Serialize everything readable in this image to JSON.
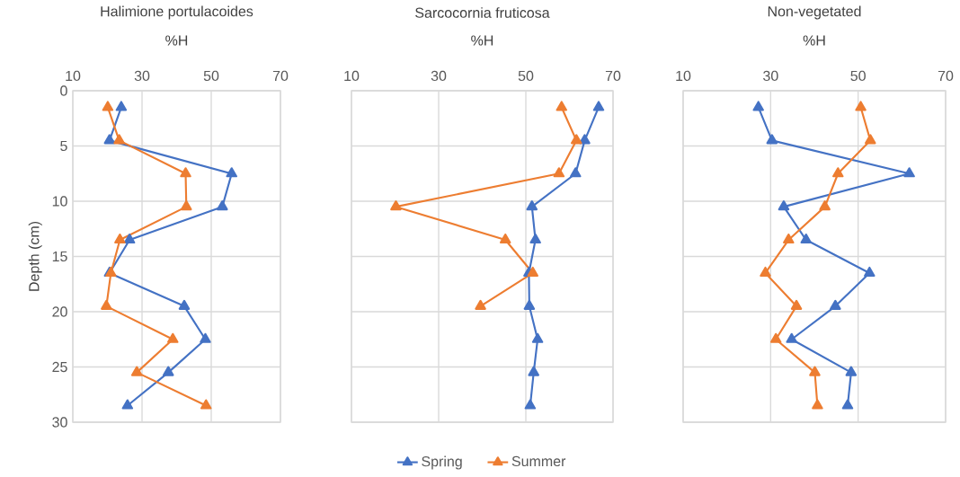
{
  "chart_data": [
    {
      "type": "line",
      "title": "Halimione portulacoides",
      "xlabel": "%H",
      "ylabel": "Depth (cm)",
      "xlim": [
        10,
        70
      ],
      "xticks": [
        10,
        30,
        50,
        70
      ],
      "ylim": [
        30,
        0
      ],
      "yticks": [
        0,
        5,
        10,
        15,
        20,
        25,
        30
      ],
      "grid": true,
      "marker": "triangle",
      "line_style": "solid",
      "series": [
        {
          "color": "#4472c4",
          "x": [
            24.0,
            20.6,
            55.9,
            53.2,
            26.4,
            20.6,
            42.2,
            48.3,
            37.6,
            25.8
          ],
          "values": [
            1.5,
            4.5,
            7.5,
            10.5,
            13.5,
            16.5,
            19.5,
            22.5,
            25.5,
            28.5
          ]
        },
        {
          "color": "#ed7d31",
          "x": [
            20.1,
            23.4,
            42.6,
            42.8,
            23.6,
            21.0,
            19.7,
            38.9,
            28.5,
            48.5
          ],
          "values": [
            1.5,
            4.5,
            7.5,
            10.5,
            13.5,
            16.5,
            19.5,
            22.5,
            25.5,
            28.5
          ]
        }
      ]
    },
    {
      "type": "line",
      "title": "Sarcocornia fruticosa",
      "xlabel": "%H",
      "xlim": [
        10,
        70
      ],
      "xticks": [
        10,
        30,
        50,
        70
      ],
      "ylim": [
        30,
        0
      ],
      "yticks": [
        0,
        5,
        10,
        15,
        20,
        25,
        30
      ],
      "tick_labels": "x",
      "grid": true,
      "marker": "triangle",
      "line_style": "solid",
      "legend": "bottom",
      "series": [
        {
          "name": "Spring",
          "color": "#4472c4",
          "x": [
            66.7,
            63.5,
            61.4,
            51.4,
            52.2,
            50.7,
            50.8,
            52.7,
            51.8,
            51.0
          ],
          "values": [
            1.5,
            4.5,
            7.5,
            10.5,
            13.5,
            16.5,
            19.5,
            22.5,
            25.5,
            28.5
          ]
        },
        {
          "name": "Summer",
          "color": "#ed7d31",
          "x": [
            58.2,
            61.6,
            57.6,
            20.2,
            45.3,
            51.6,
            39.6
          ],
          "values": [
            1.5,
            4.5,
            7.5,
            10.5,
            13.5,
            16.5,
            19.5
          ]
        }
      ]
    },
    {
      "type": "line",
      "title": "Non-vegetated",
      "xlabel": "%H",
      "xlim": [
        10,
        70
      ],
      "xticks": [
        10,
        30,
        50,
        70
      ],
      "ylim": [
        30,
        0
      ],
      "yticks": [
        0,
        5,
        10,
        15,
        20,
        25,
        30
      ],
      "tick_labels": "x",
      "grid": true,
      "marker": "triangle",
      "line_style": "solid",
      "series": [
        {
          "color": "#4472c4",
          "x": [
            27.2,
            30.3,
            61.7,
            33.0,
            38.1,
            52.6,
            44.8,
            34.8,
            48.4,
            47.6
          ],
          "values": [
            1.5,
            4.5,
            7.5,
            10.5,
            13.5,
            16.5,
            19.5,
            22.5,
            25.5,
            28.5
          ]
        },
        {
          "color": "#ed7d31",
          "x": [
            50.6,
            52.8,
            45.4,
            42.4,
            34.1,
            28.8,
            35.9,
            31.2,
            40.1,
            40.7
          ],
          "values": [
            1.5,
            4.5,
            7.5,
            10.5,
            13.5,
            16.5,
            19.5,
            22.5,
            25.5,
            28.5
          ]
        }
      ]
    }
  ]
}
